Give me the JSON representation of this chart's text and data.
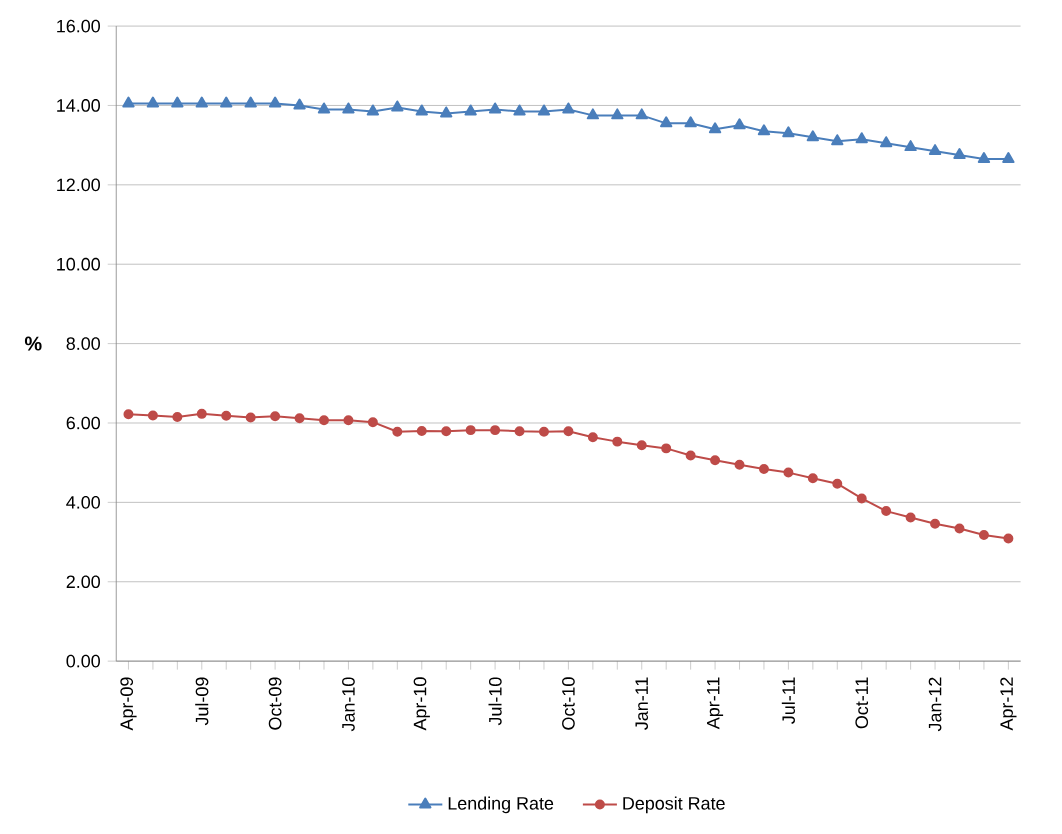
{
  "chart_data": {
    "type": "line",
    "ylabel": "%",
    "categories": [
      "Apr-09",
      null,
      null,
      "Jul-09",
      null,
      null,
      "Oct-09",
      null,
      null,
      "Jan-10",
      null,
      null,
      "Apr-10",
      null,
      null,
      "Jul-10",
      null,
      null,
      "Oct-10",
      null,
      null,
      "Jan-11",
      null,
      null,
      "Apr-11",
      null,
      null,
      "Jul-11",
      null,
      null,
      "Oct-11",
      null,
      null,
      "Jan-12",
      null,
      null,
      "Apr-12"
    ],
    "series": [
      {
        "name": "Lending Rate",
        "color": "#4a7ebb",
        "marker": "triangle",
        "values": [
          14.05,
          14.05,
          14.05,
          14.05,
          14.05,
          14.05,
          14.05,
          14.0,
          13.9,
          13.9,
          13.85,
          13.95,
          13.85,
          13.8,
          13.85,
          13.9,
          13.85,
          13.85,
          13.9,
          13.75,
          13.75,
          13.75,
          13.55,
          13.55,
          13.4,
          13.5,
          13.35,
          13.3,
          13.2,
          13.1,
          13.15,
          13.05,
          12.95,
          12.85,
          12.75,
          12.65,
          12.65
        ]
      },
      {
        "name": "Deposit Rate",
        "color": "#be4b48",
        "marker": "circle",
        "values": [
          6.22,
          6.19,
          6.15,
          6.23,
          6.18,
          6.14,
          6.17,
          6.12,
          6.07,
          6.07,
          6.02,
          5.78,
          5.8,
          5.79,
          5.82,
          5.82,
          5.79,
          5.78,
          5.79,
          5.64,
          5.53,
          5.44,
          5.36,
          5.18,
          5.06,
          4.95,
          4.84,
          4.75,
          4.61,
          4.47,
          4.1,
          3.78,
          3.62,
          3.46,
          3.34,
          3.18,
          3.09
        ]
      }
    ],
    "ylim": [
      0,
      16
    ],
    "yticks": [
      {
        "value": 0,
        "label": "0.00"
      },
      {
        "value": 2,
        "label": "2.00"
      },
      {
        "value": 4,
        "label": "4.00"
      },
      {
        "value": 6,
        "label": "6.00"
      },
      {
        "value": 8,
        "label": "8.00"
      },
      {
        "value": 10,
        "label": "10.00"
      },
      {
        "value": 12,
        "label": "12.00"
      },
      {
        "value": 14,
        "label": "14.00"
      },
      {
        "value": 16,
        "label": "16.00"
      }
    ],
    "grid": "y",
    "legend": "bottom"
  }
}
